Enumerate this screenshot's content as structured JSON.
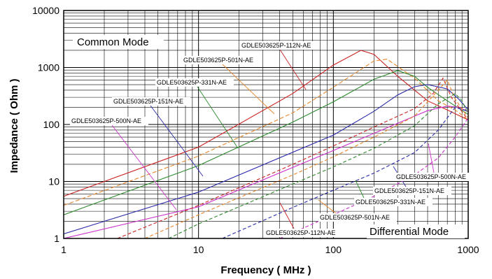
{
  "chart_data": {
    "type": "line",
    "xlabel": "Frequency ( MHz )",
    "ylabel": "Impedance ( Ohm )",
    "x_scale": "log",
    "y_scale": "log",
    "xlim": [
      1,
      1000
    ],
    "ylim": [
      1,
      10000
    ],
    "x_ticks": [
      "1",
      "10",
      "100",
      "1000"
    ],
    "y_ticks": [
      "1",
      "10",
      "100",
      "1000",
      "10000"
    ],
    "grid": true,
    "annotations": {
      "common_mode": "Common Mode",
      "differential_mode": "Differential Mode"
    },
    "series": [
      {
        "name": "GDLE503625P-112N-AE",
        "mode": "common",
        "color": "#cc2222",
        "x": [
          1,
          10,
          50,
          100,
          160,
          200,
          300,
          500,
          700,
          1000
        ],
        "y": [
          5.5,
          40,
          350,
          1100,
          2000,
          1700,
          700,
          260,
          180,
          120
        ]
      },
      {
        "name": "GDLE503625P-501N-AE",
        "mode": "common",
        "color": "#e8862a",
        "x": [
          1,
          10,
          50,
          100,
          200,
          250,
          400,
          600,
          800,
          1000
        ],
        "y": [
          3.8,
          28,
          160,
          450,
          1300,
          1400,
          650,
          260,
          180,
          120
        ]
      },
      {
        "name": "GDLE503625P-331N-AE",
        "mode": "common",
        "color": "#2e8b2e",
        "x": [
          1,
          10,
          50,
          100,
          200,
          300,
          400,
          500,
          700,
          1000
        ],
        "y": [
          2.6,
          19,
          110,
          250,
          620,
          880,
          700,
          450,
          260,
          150
        ]
      },
      {
        "name": "GDLE503625P-151N-AE",
        "mode": "common",
        "color": "#2a2aaa",
        "x": [
          1,
          10,
          100,
          200,
          300,
          400,
          500,
          700,
          850,
          1000
        ],
        "y": [
          1.2,
          6.5,
          65,
          170,
          330,
          460,
          500,
          420,
          280,
          180
        ]
      },
      {
        "name": "GDLE503625P-500N-AE",
        "mode": "common",
        "color": "#cc33cc",
        "x": [
          1,
          10,
          100,
          300,
          500,
          700,
          850,
          1000
        ],
        "y": [
          0.55,
          3.6,
          35,
          105,
          175,
          210,
          200,
          170
        ]
      },
      {
        "name": "GDLE503625P-112N-AE",
        "mode": "differential",
        "color": "#cc2222",
        "x": [
          2.5,
          10,
          50,
          100,
          200,
          400,
          550,
          650,
          750,
          1000
        ],
        "y": [
          1,
          3.8,
          20,
          42,
          90,
          190,
          350,
          650,
          300,
          120
        ]
      },
      {
        "name": "GDLE503625P-501N-AE",
        "mode": "differential",
        "color": "#e8862a",
        "x": [
          4,
          10,
          50,
          100,
          200,
          400,
          600,
          700,
          800,
          1000
        ],
        "y": [
          1,
          2.6,
          13,
          27,
          60,
          140,
          400,
          600,
          280,
          130
        ]
      },
      {
        "name": "GDLE503625P-331N-AE",
        "mode": "differential",
        "color": "#2e8b2e",
        "x": [
          6,
          10,
          50,
          100,
          200,
          400,
          600,
          800,
          900,
          1000
        ],
        "y": [
          1,
          1.8,
          9,
          18,
          38,
          95,
          230,
          350,
          260,
          150
        ]
      },
      {
        "name": "GDLE503625P-151N-AE",
        "mode": "differential",
        "color": "#2a2aaa",
        "x": [
          15,
          50,
          100,
          200,
          400,
          600,
          800,
          1000
        ],
        "y": [
          1,
          3.5,
          7,
          14,
          32,
          80,
          200,
          170
        ]
      },
      {
        "name": "GDLE503625P-500N-AE",
        "mode": "differential",
        "color": "#cc33cc",
        "x": [
          40,
          100,
          200,
          400,
          600,
          800,
          1000
        ],
        "y": [
          1,
          2.6,
          5.5,
          13,
          26,
          60,
          130
        ]
      }
    ],
    "series_labels": {
      "common": [
        "GDLE503625P-112N-AE",
        "GDLE503625P-501N-AE",
        "GDLE503625P-331N-AE",
        "GDLE503625P-151N-AE",
        "GDLE503625P-500N-AE"
      ],
      "differential": [
        "GDLE503625P-500N-AE",
        "GDLE503625P-151N-AE",
        "GDLE503625P-331N-AE",
        "GDLE503625P-501N-AE",
        "GDLE503625P-112N-AE"
      ]
    }
  }
}
